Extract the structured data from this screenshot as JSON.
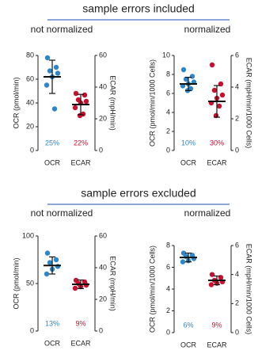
{
  "sections": [
    "sample errors included",
    "sample errors excluded"
  ],
  "chart_data": [
    {
      "type": "scatter",
      "title": "not normalized",
      "ylabel": "OCR (pmol/min)",
      "y2label": "ECAR (mpH/min)",
      "ylim": [
        0,
        80
      ],
      "yticks": [
        0,
        20,
        40,
        60,
        80
      ],
      "y2lim": [
        0,
        60
      ],
      "y2ticks": [
        0,
        20,
        40,
        60
      ],
      "series": [
        {
          "name": "OCR",
          "color": "#2e86c8",
          "values": [
            78,
            70,
            67,
            65,
            62,
            55,
            35
          ],
          "mean": 62,
          "sd": 14,
          "cv_label": "25%"
        },
        {
          "name": "ECAR",
          "color": "#c8102e",
          "axis": "y2",
          "values": [
            36,
            35,
            32,
            31,
            30,
            27,
            23,
            22
          ],
          "mean": 29,
          "sd": 6.4,
          "cv_label": "22%"
        }
      ]
    },
    {
      "type": "scatter",
      "title": "normalized",
      "ylabel": "OCR (pmol/min/1000 Cells)",
      "y2label": "ECAR (mpH/min/1000 Cells)",
      "ylim": [
        0,
        10
      ],
      "yticks": [
        0,
        2,
        4,
        6,
        8,
        10
      ],
      "y2lim": [
        0,
        6
      ],
      "y2ticks": [
        0,
        2,
        4,
        6
      ],
      "series": [
        {
          "name": "OCR",
          "color": "#2e86c8",
          "values": [
            8.5,
            7.8,
            7.5,
            7.2,
            7,
            6.8,
            6.5,
            6.3
          ],
          "mean": 7,
          "sd": 0.7,
          "cv_label": "10%"
        },
        {
          "name": "ECAR",
          "color": "#c8102e",
          "axis": "y2",
          "values": [
            5.4,
            4.2,
            3.8,
            3.5,
            3.3,
            3,
            2.8,
            2.2
          ],
          "mean": 3.1,
          "sd": 1,
          "cv_label": "30%"
        }
      ]
    },
    {
      "type": "scatter",
      "title": "not normalized",
      "ylabel": "OCR (pmol/min)",
      "y2label": "ECAR (mpH/min)",
      "ylim": [
        0,
        100
      ],
      "yticks": [
        0,
        50,
        100
      ],
      "y2lim": [
        0,
        60
      ],
      "y2ticks": [
        0,
        20,
        40,
        60
      ],
      "series": [
        {
          "name": "OCR",
          "color": "#2e86c8",
          "values": [
            82,
            75,
            72,
            68,
            65,
            60
          ],
          "mean": 69,
          "sd": 9,
          "cv_label": "13%"
        },
        {
          "name": "ECAR",
          "color": "#c8102e",
          "axis": "y2",
          "values": [
            32,
            31,
            30,
            29,
            28,
            27
          ],
          "mean": 29.5,
          "sd": 2.7,
          "cv_label": "9%"
        }
      ]
    },
    {
      "type": "scatter",
      "title": "normalized",
      "ylabel": "OCR (pmol/min/1000 Cells)",
      "y2label": "ECAR (mpH/min/1000 Cells)",
      "ylim": [
        0,
        8
      ],
      "yticks": [
        0,
        2,
        4,
        6,
        8
      ],
      "y2lim": [
        0,
        6
      ],
      "y2ticks": [
        0,
        2,
        4,
        6
      ],
      "series": [
        {
          "name": "OCR",
          "color": "#2e86c8",
          "values": [
            7.3,
            7.1,
            7,
            6.8,
            6.6,
            6.5
          ],
          "mean": 6.9,
          "sd": 0.4,
          "cv_label": "6%"
        },
        {
          "name": "ECAR",
          "color": "#c8102e",
          "axis": "y2",
          "values": [
            4,
            3.8,
            3.6,
            3.5,
            3.4,
            3.3
          ],
          "mean": 3.6,
          "sd": 0.3,
          "cv_label": "9%"
        }
      ]
    }
  ]
}
